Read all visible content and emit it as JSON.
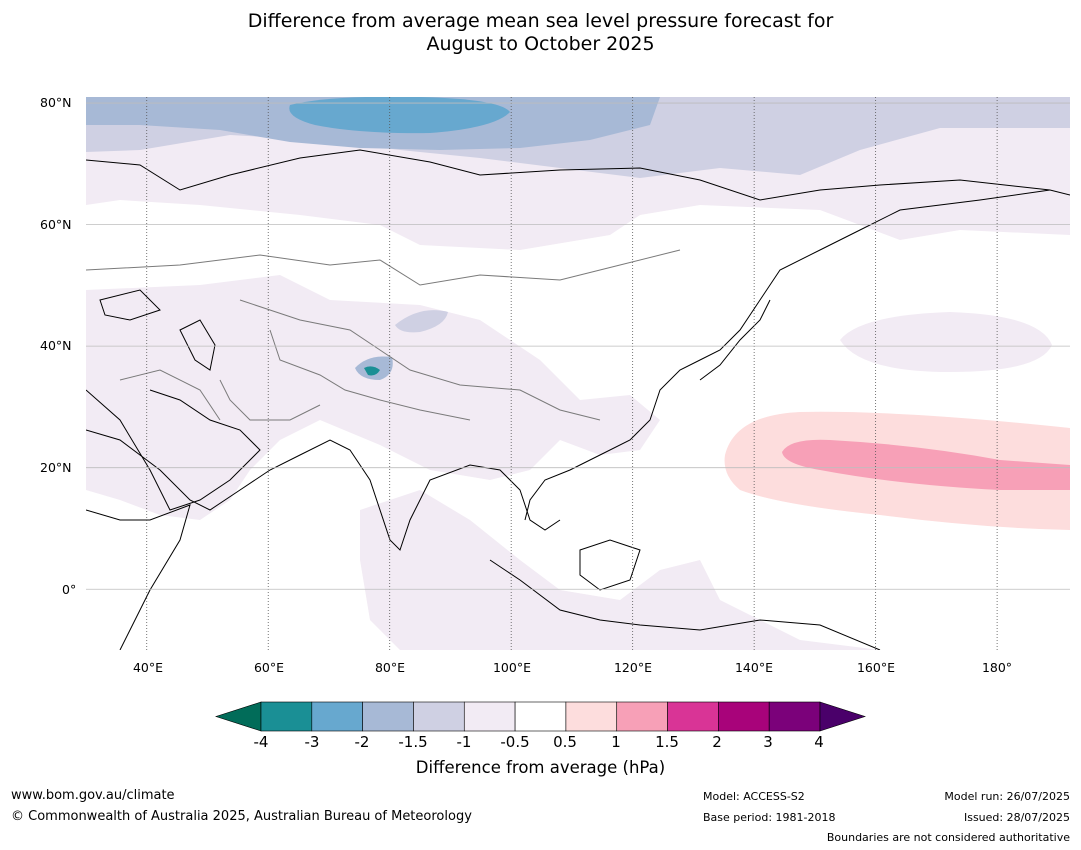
{
  "title": {
    "line1": "Difference from average mean sea level pressure forecast for",
    "line2": "August to October 2025"
  },
  "map": {
    "lat_labels": [
      "80°N",
      "60°N",
      "40°N",
      "20°N",
      "0°"
    ],
    "lon_labels": [
      "40°E",
      "60°E",
      "80°E",
      "100°E",
      "120°E",
      "140°E",
      "160°E",
      "180°"
    ],
    "extent": {
      "lon": [
        30,
        192
      ],
      "lat": [
        -10,
        81
      ]
    }
  },
  "colorbar": {
    "ticks": [
      "-4",
      "-3",
      "-2",
      "-1.5",
      "-1",
      "-0.5",
      "0.5",
      "1",
      "1.5",
      "2",
      "3",
      "4"
    ],
    "colors": [
      "#1a8f95",
      "#67a8cf",
      "#a7b9d6",
      "#cfd0e3",
      "#f2ebf4",
      "#ffffff",
      "#fddddd",
      "#f7a0b7",
      "#d93496",
      "#a8037a",
      "#7b017a"
    ],
    "under_color": "#016c59",
    "over_color": "#4a006a",
    "label": "Difference from average (hPa)"
  },
  "footer": {
    "website": "www.bom.gov.au/climate",
    "copyright": "© Commonwealth of Australia 2025, Australian Bureau of Meteorology",
    "model": "Model: ACCESS-S2",
    "base_period": "Base period: 1981-2018",
    "model_run": "Model run: 26/07/2025",
    "issued": "Issued: 28/07/2025",
    "disclaimer": "Boundaries are not considered authoritative"
  }
}
